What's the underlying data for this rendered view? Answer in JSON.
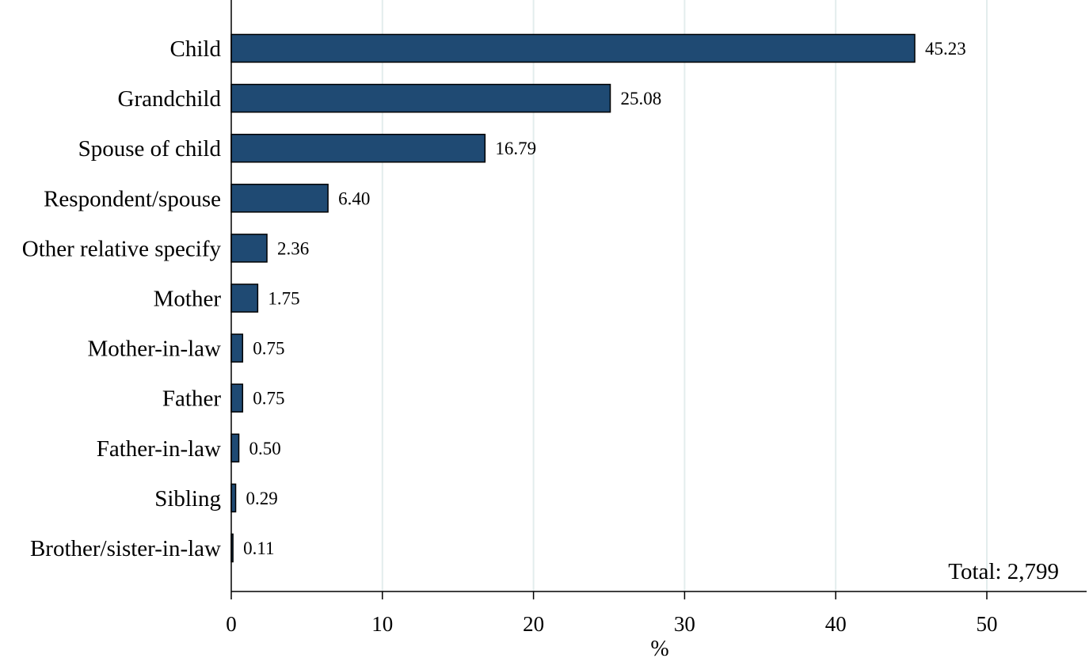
{
  "chart_data": {
    "type": "bar",
    "orientation": "horizontal",
    "categories": [
      "Child",
      "Grandchild",
      "Spouse of child",
      "Respondent/spouse",
      "Other relative specify",
      "Mother",
      "Mother-in-law",
      "Father",
      "Father-in-law",
      "Sibling",
      "Brother/sister-in-law"
    ],
    "values": [
      45.23,
      25.08,
      16.79,
      6.4,
      2.36,
      1.75,
      0.75,
      0.75,
      0.5,
      0.29,
      0.11
    ],
    "value_labels": [
      "45.23",
      "25.08",
      "16.79",
      "6.40",
      "2.36",
      "1.75",
      "0.75",
      "0.75",
      "0.50",
      "0.29",
      "0.11"
    ],
    "title": "",
    "xlabel": "%",
    "ylabel": "",
    "xlim": [
      0,
      57
    ],
    "xticks": [
      0,
      10,
      20,
      30,
      40,
      50
    ],
    "xtick_labels": [
      "0",
      "10",
      "20",
      "30",
      "40",
      "50"
    ],
    "grid": "vertical",
    "annotation": "Total: 2,799",
    "colors": {
      "bar_fill": "#1f4a73",
      "bar_stroke": "#000000",
      "grid": "#e3eded",
      "axis": "#000000"
    }
  }
}
